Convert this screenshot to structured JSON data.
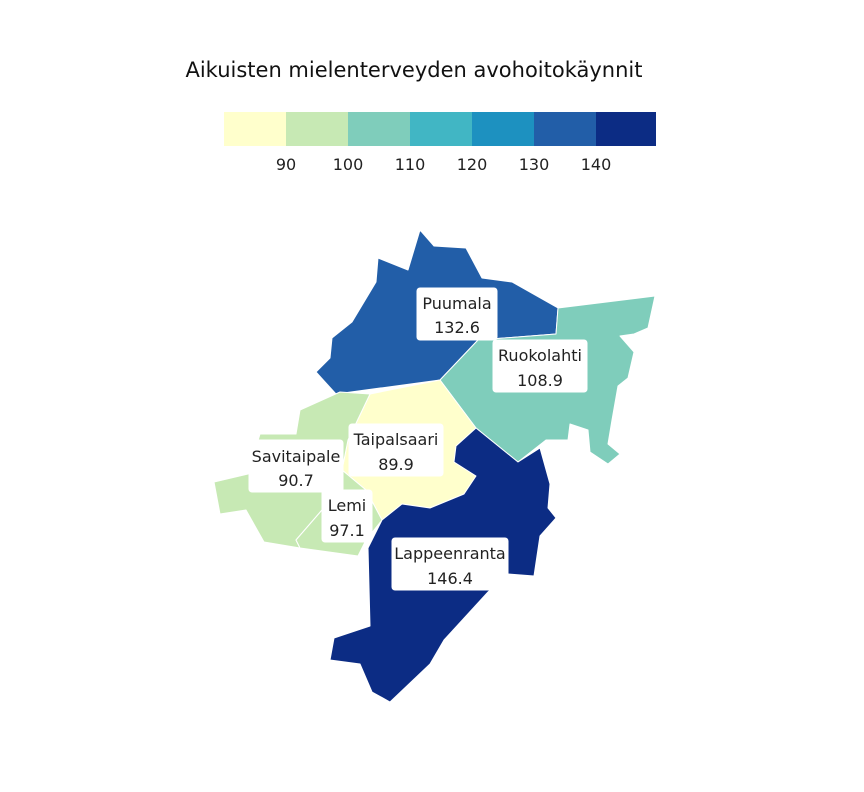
{
  "title": "Aikuisten mielenterveyden avohoitokäynnit",
  "legend": {
    "colors": [
      "#ffffcc",
      "#c7e9b4",
      "#7fcdbb",
      "#41b6c4",
      "#1d91c0",
      "#225ea8",
      "#0c2c84"
    ],
    "ticks": [
      "90",
      "100",
      "110",
      "120",
      "130",
      "140"
    ],
    "breaks": [
      90,
      100,
      110,
      120,
      130,
      140
    ]
  },
  "regions": [
    {
      "name": "Puumala",
      "value": "132.6"
    },
    {
      "name": "Ruokolahti",
      "value": "108.9"
    },
    {
      "name": "Taipalsaari",
      "value": "89.9"
    },
    {
      "name": "Savitaipale",
      "value": "90.7"
    },
    {
      "name": "Lemi",
      "value": "97.1"
    },
    {
      "name": "Lappeenranta",
      "value": "146.4"
    }
  ]
}
